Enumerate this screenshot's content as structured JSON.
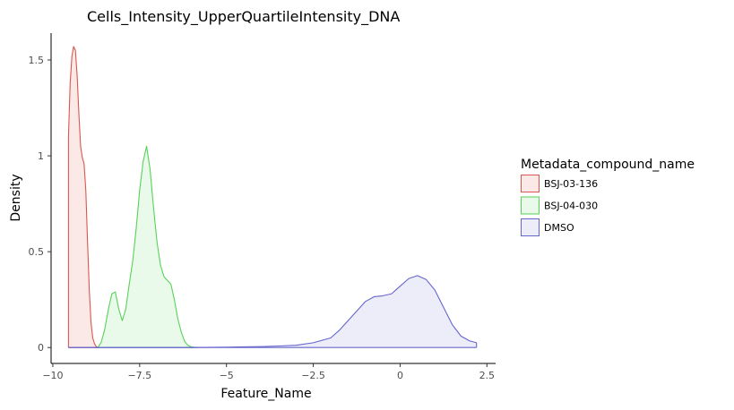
{
  "chart_data": {
    "type": "area",
    "title": "Cells_Intensity_UpperQuartileIntensity_DNA",
    "xlabel": "Feature_Name",
    "ylabel": "Density",
    "xlim": [
      -10.05,
      2.75
    ],
    "ylim": [
      -0.083,
      1.64
    ],
    "x_ticks": [
      -10,
      -7.5,
      -5,
      -2.5,
      0,
      2.5
    ],
    "x_tick_labels": [
      "−10",
      "−7.5",
      "−5",
      "−2.5",
      "0",
      "2.5"
    ],
    "y_ticks": [
      0,
      0.5,
      1,
      1.5
    ],
    "y_tick_labels": [
      "0",
      "0.5",
      "1",
      "1.5"
    ],
    "grid": false,
    "legend": {
      "title": "Metadata_compound_name",
      "placement": "right"
    },
    "series": [
      {
        "name": "BSJ-03-136",
        "color": "#d9584e",
        "fill": "#fbe9e7",
        "x": [
          -9.55,
          -9.55,
          -9.5,
          -9.45,
          -9.4,
          -9.35,
          -9.3,
          -9.25,
          -9.2,
          -9.15,
          -9.1,
          -9.05,
          -9.0,
          -8.95,
          -8.9,
          -8.85,
          -8.8,
          -8.75,
          -8.7
        ],
        "y": [
          0,
          1.1,
          1.38,
          1.52,
          1.57,
          1.55,
          1.42,
          1.22,
          1.05,
          0.99,
          0.96,
          0.82,
          0.55,
          0.3,
          0.13,
          0.05,
          0.02,
          0.005,
          0
        ]
      },
      {
        "name": "BSJ-04-030",
        "color": "#57d257",
        "fill": "#eafaea",
        "x": [
          -8.7,
          -8.6,
          -8.5,
          -8.4,
          -8.3,
          -8.2,
          -8.1,
          -8.0,
          -7.9,
          -7.8,
          -7.7,
          -7.6,
          -7.5,
          -7.4,
          -7.3,
          -7.2,
          -7.1,
          -7.0,
          -6.9,
          -6.8,
          -6.7,
          -6.6,
          -6.5,
          -6.4,
          -6.3,
          -6.2,
          -6.1,
          -6.0,
          -5.9,
          -5.8
        ],
        "y": [
          0,
          0.03,
          0.1,
          0.2,
          0.28,
          0.29,
          0.2,
          0.14,
          0.2,
          0.33,
          0.45,
          0.62,
          0.82,
          0.97,
          1.05,
          0.93,
          0.73,
          0.55,
          0.43,
          0.37,
          0.35,
          0.33,
          0.25,
          0.15,
          0.08,
          0.03,
          0.01,
          0.003,
          0.001,
          0
        ]
      },
      {
        "name": "DMSO",
        "color": "#6666cc",
        "fill": "#ededfa",
        "x": [
          -9.55,
          -6.0,
          -5.0,
          -4.5,
          -4.0,
          -3.5,
          -3.0,
          -2.5,
          -2.0,
          -1.75,
          -1.5,
          -1.25,
          -1.0,
          -0.75,
          -0.5,
          -0.25,
          0.0,
          0.25,
          0.5,
          0.75,
          1.0,
          1.25,
          1.5,
          1.75,
          2.0,
          2.2,
          2.2
        ],
        "y": [
          0,
          0,
          0.002,
          0.004,
          0.005,
          0.008,
          0.012,
          0.025,
          0.05,
          0.09,
          0.14,
          0.19,
          0.24,
          0.265,
          0.27,
          0.28,
          0.32,
          0.36,
          0.375,
          0.355,
          0.3,
          0.21,
          0.12,
          0.06,
          0.035,
          0.025,
          0
        ]
      }
    ]
  }
}
